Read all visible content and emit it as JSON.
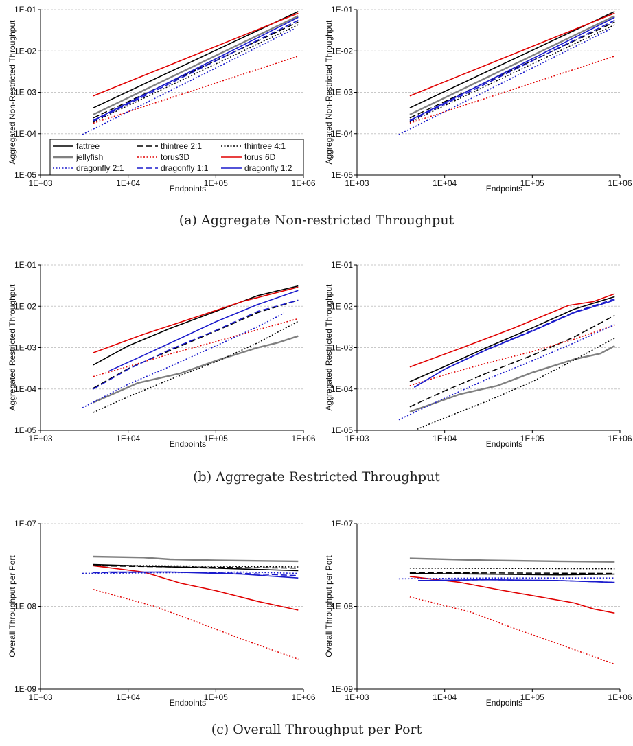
{
  "captions": {
    "a": "(a) Aggregate Non-restricted Throughput",
    "b": "(b) Aggregate Restricted Throughput",
    "c": "(c) Overall Throughput per Port"
  },
  "styles": {
    "fattree": {
      "color": "#000000",
      "dash": "solid",
      "width": 1.6
    },
    "jellyfish": {
      "color": "#808080",
      "dash": "solid",
      "width": 2.4
    },
    "thintree 2:1": {
      "color": "#000000",
      "dash": "dashed",
      "width": 1.5
    },
    "torus3D": {
      "color": "#e00000",
      "dash": "dotted",
      "width": 1.5
    },
    "thintree 4:1": {
      "color": "#000000",
      "dash": "dotted",
      "width": 1.5
    },
    "torus 6D": {
      "color": "#e00000",
      "dash": "solid",
      "width": 1.6
    },
    "dragonfly 2:1": {
      "color": "#1a1acc",
      "dash": "dotted",
      "width": 1.6
    },
    "dragonfly 1:1": {
      "color": "#1a1acc",
      "dash": "dashed",
      "width": 1.6
    },
    "dragonfly 1:2": {
      "color": "#1a1acc",
      "dash": "solid",
      "width": 1.6
    }
  },
  "legend": {
    "entries": [
      "fattree",
      "thintree 2:1",
      "thintree 4:1",
      "jellyfish",
      "torus3D",
      "torus 6D",
      "dragonfly 2:1",
      "dragonfly 1:1",
      "dragonfly 1:2"
    ]
  },
  "chart_data": [
    {
      "id": "a-left",
      "type": "line",
      "xscale": "log",
      "yscale": "log",
      "xlabel": "Endpoints",
      "ylabel": "Aggregated Non-Restricted Throughput",
      "xlim": [
        1000,
        1000000
      ],
      "ylim": [
        1e-05,
        0.1
      ],
      "xticks": [
        "1E+03",
        "1E+04",
        "1E+05",
        "1E+06"
      ],
      "yticks": [
        "1E-05",
        "1E-04",
        "1E-03",
        "1E-02",
        "1E-01"
      ],
      "legend": "lower-left",
      "series": [
        {
          "name": "fattree",
          "x": [
            4000,
            870000
          ],
          "y": [
            0.00042,
            0.09
          ]
        },
        {
          "name": "jellyfish",
          "x": [
            4000,
            870000
          ],
          "y": [
            0.00029,
            0.07
          ]
        },
        {
          "name": "thintree 2:1",
          "x": [
            4000,
            870000
          ],
          "y": [
            0.00024,
            0.05
          ]
        },
        {
          "name": "torus3D",
          "x": [
            4000,
            870000
          ],
          "y": [
            0.00018,
            0.0075
          ]
        },
        {
          "name": "thintree 4:1",
          "x": [
            4000,
            870000
          ],
          "y": [
            0.00019,
            0.043
          ]
        },
        {
          "name": "torus 6D",
          "x": [
            4000,
            870000
          ],
          "y": [
            0.00082,
            0.082
          ]
        },
        {
          "name": "dragonfly 2:1",
          "x": [
            3000,
            800000
          ],
          "y": [
            9.5e-05,
            0.035
          ]
        },
        {
          "name": "dragonfly 1:1",
          "x": [
            4000,
            870000
          ],
          "y": [
            0.0002,
            0.055
          ]
        },
        {
          "name": "dragonfly 1:2",
          "x": [
            4000,
            870000
          ],
          "y": [
            0.00021,
            0.065
          ]
        }
      ]
    },
    {
      "id": "a-right",
      "type": "line",
      "xscale": "log",
      "yscale": "log",
      "xlabel": "Endpoints",
      "ylabel": "Aggregated Non-Restricted Throughput",
      "xlim": [
        1000,
        1000000
      ],
      "ylim": [
        1e-05,
        0.1
      ],
      "xticks": [
        "1E+03",
        "1E+04",
        "1E+05",
        "1E+06"
      ],
      "yticks": [
        "1E-05",
        "1E-04",
        "1E-03",
        "1E-02",
        "1E-01"
      ],
      "series": [
        {
          "name": "fattree",
          "x": [
            4000,
            870000
          ],
          "y": [
            0.00042,
            0.09
          ]
        },
        {
          "name": "jellyfish",
          "x": [
            4000,
            870000
          ],
          "y": [
            0.00029,
            0.07
          ]
        },
        {
          "name": "thintree 2:1",
          "x": [
            4000,
            870000
          ],
          "y": [
            0.00024,
            0.05
          ]
        },
        {
          "name": "torus3D",
          "x": [
            4000,
            870000
          ],
          "y": [
            0.00018,
            0.0075
          ]
        },
        {
          "name": "thintree 4:1",
          "x": [
            4000,
            870000
          ],
          "y": [
            0.00019,
            0.043
          ]
        },
        {
          "name": "torus 6D",
          "x": [
            4000,
            870000
          ],
          "y": [
            0.00082,
            0.082
          ]
        },
        {
          "name": "dragonfly 2:1",
          "x": [
            3000,
            800000
          ],
          "y": [
            9.5e-05,
            0.035
          ]
        },
        {
          "name": "dragonfly 1:1",
          "x": [
            4000,
            870000
          ],
          "y": [
            0.0002,
            0.055
          ]
        },
        {
          "name": "dragonfly 1:2",
          "x": [
            4000,
            870000
          ],
          "y": [
            0.00021,
            0.065
          ]
        }
      ]
    },
    {
      "id": "b-left",
      "type": "line",
      "xscale": "log",
      "yscale": "log",
      "xlabel": "Endpoints",
      "ylabel": "Aggregated Restricted Throughput",
      "xlim": [
        1000,
        1000000
      ],
      "ylim": [
        1e-05,
        0.1
      ],
      "xticks": [
        "1E+03",
        "1E+04",
        "1E+05",
        "1E+06"
      ],
      "yticks": [
        "1E-05",
        "1E-04",
        "1E-03",
        "1E-02",
        "1E-01"
      ],
      "series": [
        {
          "name": "fattree",
          "x": [
            4000,
            10000,
            30000,
            100000,
            300000,
            870000
          ],
          "y": [
            0.00038,
            0.0011,
            0.0029,
            0.0075,
            0.018,
            0.031
          ]
        },
        {
          "name": "jellyfish",
          "x": [
            4000,
            13000,
            40000,
            100000,
            300000,
            500000,
            870000
          ],
          "y": [
            4.7e-05,
            0.00014,
            0.00024,
            0.00048,
            0.001,
            0.0013,
            0.0019
          ]
        },
        {
          "name": "thintree 2:1",
          "x": [
            4000,
            10000,
            30000,
            100000,
            300000,
            870000
          ],
          "y": [
            0.000105,
            0.00031,
            0.00085,
            0.0025,
            0.007,
            0.014
          ]
        },
        {
          "name": "torus3D",
          "x": [
            4000,
            10000,
            30000,
            100000,
            300000,
            870000
          ],
          "y": [
            0.0002,
            0.00035,
            0.0007,
            0.0014,
            0.0027,
            0.005
          ]
        },
        {
          "name": "thintree 4:1",
          "x": [
            4000,
            10000,
            30000,
            100000,
            300000,
            870000
          ],
          "y": [
            2.7e-05,
            6.5e-05,
            0.00017,
            0.00045,
            0.0013,
            0.0043
          ]
        },
        {
          "name": "torus 6D",
          "x": [
            4000,
            15000,
            60000,
            200000,
            870000
          ],
          "y": [
            0.00075,
            0.0021,
            0.0055,
            0.013,
            0.029
          ]
        },
        {
          "name": "dragonfly 2:1",
          "x": [
            3000,
            10000,
            30000,
            100000,
            300000,
            600000
          ],
          "y": [
            3.5e-05,
            0.00013,
            0.00035,
            0.0011,
            0.0032,
            0.0068
          ]
        },
        {
          "name": "dragonfly 1:1",
          "x": [
            4000,
            10000,
            30000,
            100000,
            300000,
            870000
          ],
          "y": [
            0.0001,
            0.0003,
            0.0009,
            0.0026,
            0.0075,
            0.014
          ]
        },
        {
          "name": "dragonfly 1:2",
          "x": [
            6000,
            15000,
            40000,
            100000,
            300000,
            870000
          ],
          "y": [
            0.00027,
            0.00065,
            0.0017,
            0.0042,
            0.011,
            0.024
          ]
        }
      ]
    },
    {
      "id": "b-right",
      "type": "line",
      "xscale": "log",
      "yscale": "log",
      "xlabel": "Endpoints",
      "ylabel": "Aggregated Restricted Throughput",
      "xlim": [
        1000,
        1000000
      ],
      "ylim": [
        1e-05,
        0.1
      ],
      "xticks": [
        "1E+03",
        "1E+04",
        "1E+05",
        "1E+06"
      ],
      "yticks": [
        "1E-05",
        "1E-04",
        "1E-03",
        "1E-02",
        "1E-01"
      ],
      "series": [
        {
          "name": "fattree",
          "x": [
            4000,
            10000,
            30000,
            100000,
            300000,
            870000
          ],
          "y": [
            0.00015,
            0.00035,
            0.001,
            0.003,
            0.0085,
            0.017
          ]
        },
        {
          "name": "jellyfish",
          "x": [
            4000,
            15000,
            40000,
            100000,
            300000,
            600000,
            870000
          ],
          "y": [
            2.8e-05,
            7.5e-05,
            0.00012,
            0.00025,
            0.00052,
            0.00072,
            0.0011
          ]
        },
        {
          "name": "thintree 2:1",
          "x": [
            4000,
            10000,
            30000,
            100000,
            300000,
            870000
          ],
          "y": [
            3.7e-05,
            9e-05,
            0.00024,
            0.00065,
            0.0018,
            0.006
          ]
        },
        {
          "name": "torus3D",
          "x": [
            4000,
            10000,
            30000,
            100000,
            300000,
            870000
          ],
          "y": [
            0.00012,
            0.00022,
            0.00042,
            0.0008,
            0.0016,
            0.0035
          ]
        },
        {
          "name": "thintree 4:1",
          "x": [
            4500,
            10000,
            30000,
            100000,
            300000,
            870000
          ],
          "y": [
            1e-05,
            2e-05,
            5e-05,
            0.00015,
            0.0005,
            0.0017
          ]
        },
        {
          "name": "torus 6D",
          "x": [
            4000,
            15000,
            60000,
            260000,
            500000,
            870000
          ],
          "y": [
            0.00034,
            0.00095,
            0.0029,
            0.0105,
            0.013,
            0.02
          ]
        },
        {
          "name": "dragonfly 2:1",
          "x": [
            3000,
            10000,
            30000,
            100000,
            300000,
            870000
          ],
          "y": [
            1.8e-05,
            6e-05,
            0.00017,
            0.00048,
            0.0013,
            0.0036
          ]
        },
        {
          "name": "dragonfly 1:1",
          "x": [
            4500,
            10000,
            30000,
            100000,
            300000,
            870000
          ],
          "y": [
            0.00011,
            0.0003,
            0.0009,
            0.0026,
            0.0072,
            0.015
          ]
        },
        {
          "name": "dragonfly 1:2",
          "x": [
            4500,
            10000,
            30000,
            100000,
            300000,
            870000
          ],
          "y": [
            0.00011,
            0.0003,
            0.00088,
            0.0025,
            0.007,
            0.014
          ]
        }
      ]
    },
    {
      "id": "c-left",
      "type": "line",
      "xscale": "log",
      "yscale": "log",
      "xlabel": "Endpoints",
      "ylabel": "Overall Throughput per Port",
      "xlim": [
        1000,
        1000000
      ],
      "ylim": [
        1e-09,
        1e-07
      ],
      "xticks": [
        "1E+03",
        "1E+04",
        "1E+05",
        "1E+06"
      ],
      "yticks": [
        "1E-09",
        "1E-08",
        "1E-07"
      ],
      "series": [
        {
          "name": "fattree",
          "x": [
            4000,
            30000,
            100000,
            870000
          ],
          "y": [
            3.2e-08,
            3e-08,
            2.9e-08,
            2.7e-08
          ]
        },
        {
          "name": "jellyfish",
          "x": [
            4000,
            15000,
            30000,
            100000,
            870000
          ],
          "y": [
            4e-08,
            3.9e-08,
            3.7e-08,
            3.6e-08,
            3.5e-08
          ]
        },
        {
          "name": "thintree 2:1",
          "x": [
            4000,
            30000,
            870000
          ],
          "y": [
            3.1e-08,
            3e-08,
            2.9e-08
          ]
        },
        {
          "name": "torus3D",
          "x": [
            4000,
            20000,
            60000,
            200000,
            870000
          ],
          "y": [
            1.6e-08,
            1e-08,
            6.5e-09,
            4e-09,
            2.3e-09
          ]
        },
        {
          "name": "thintree 4:1",
          "x": [
            4000,
            870000
          ],
          "y": [
            3.15e-08,
            3e-08
          ]
        },
        {
          "name": "torus 6D",
          "x": [
            4000,
            15000,
            40000,
            100000,
            300000,
            870000
          ],
          "y": [
            3.1e-08,
            2.6e-08,
            1.9e-08,
            1.55e-08,
            1.15e-08,
            9e-09
          ]
        },
        {
          "name": "dragonfly 2:1",
          "x": [
            3000,
            30000,
            200000,
            870000
          ],
          "y": [
            2.5e-08,
            2.55e-08,
            2.6e-08,
            2.5e-08
          ]
        },
        {
          "name": "dragonfly 1:1",
          "x": [
            4000,
            30000,
            200000,
            870000
          ],
          "y": [
            2.55e-08,
            2.6e-08,
            2.5e-08,
            2.35e-08
          ]
        },
        {
          "name": "dragonfly 1:2",
          "x": [
            6000,
            30000,
            200000,
            870000
          ],
          "y": [
            2.6e-08,
            2.6e-08,
            2.45e-08,
            2.2e-08
          ]
        }
      ]
    },
    {
      "id": "c-right",
      "type": "line",
      "xscale": "log",
      "yscale": "log",
      "xlabel": "Endpoints",
      "ylabel": "Overall Throughput per Port",
      "xlim": [
        1000,
        1000000
      ],
      "ylim": [
        1e-09,
        1e-07
      ],
      "xticks": [
        "1E+03",
        "1E+04",
        "1E+05",
        "1E+06"
      ],
      "yticks": [
        "1E-09",
        "1E-08",
        "1E-07"
      ],
      "series": [
        {
          "name": "fattree",
          "x": [
            4000,
            30000,
            200000,
            870000
          ],
          "y": [
            2.5e-08,
            2.45e-08,
            2.4e-08,
            2.45e-08
          ]
        },
        {
          "name": "jellyfish",
          "x": [
            4000,
            30000,
            200000,
            870000
          ],
          "y": [
            3.8e-08,
            3.6e-08,
            3.5e-08,
            3.45e-08
          ]
        },
        {
          "name": "thintree 2:1",
          "x": [
            4000,
            870000
          ],
          "y": [
            2.55e-08,
            2.5e-08
          ]
        },
        {
          "name": "torus3D",
          "x": [
            4000,
            20000,
            60000,
            200000,
            870000
          ],
          "y": [
            1.3e-08,
            8.5e-09,
            5.5e-09,
            3.5e-09,
            2e-09
          ]
        },
        {
          "name": "thintree 4:1",
          "x": [
            4000,
            870000
          ],
          "y": [
            2.9e-08,
            2.85e-08
          ]
        },
        {
          "name": "torus 6D",
          "x": [
            4000,
            15000,
            40000,
            100000,
            300000,
            500000,
            870000
          ],
          "y": [
            2.3e-08,
            1.95e-08,
            1.6e-08,
            1.35e-08,
            1.1e-08,
            9.3e-09,
            8.3e-09
          ]
        },
        {
          "name": "dragonfly 2:1",
          "x": [
            3000,
            30000,
            870000
          ],
          "y": [
            2.15e-08,
            2.2e-08,
            2.2e-08
          ]
        },
        {
          "name": "dragonfly 1:1",
          "x": [
            5000,
            30000,
            200000,
            870000
          ],
          "y": [
            2.05e-08,
            2.1e-08,
            2.05e-08,
            1.95e-08
          ]
        },
        {
          "name": "dragonfly 1:2",
          "x": [
            5000,
            30000,
            200000,
            870000
          ],
          "y": [
            2.05e-08,
            2.1e-08,
            2.05e-08,
            1.95e-08
          ]
        }
      ]
    }
  ]
}
